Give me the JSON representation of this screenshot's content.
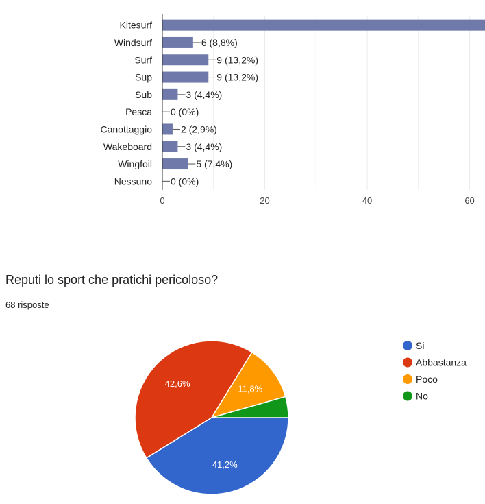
{
  "chart_data": [
    {
      "type": "bar",
      "orientation": "horizontal",
      "categories": [
        "Kitesurf",
        "Windsurf",
        "Surf",
        "Sup",
        "Sub",
        "Pesca",
        "Canottaggio",
        "Wakeboard",
        "Wingfoil",
        "Nessuno"
      ],
      "values": [
        64,
        6,
        9,
        9,
        3,
        0,
        2,
        3,
        5,
        0
      ],
      "data_labels": [
        "",
        "6 (8,8%)",
        "9 (13,2%)",
        "9 (13,2%)",
        "3 (4,4%)",
        "0 (0%)",
        "2 (2,9%)",
        "3 (4,4%)",
        "5 (7,4%)",
        "0 (0%)"
      ],
      "xticks": [
        0,
        20,
        40,
        60
      ],
      "xlim": [
        0,
        63
      ],
      "grid": true,
      "color": "#6f7aaa"
    },
    {
      "type": "pie",
      "title": "Reputi lo sport che pratichi pericoloso?",
      "subtitle": "68 risposte",
      "labels": [
        "Si",
        "Abbastanza",
        "Poco",
        "No"
      ],
      "values": [
        41.2,
        42.6,
        11.8,
        4.4
      ],
      "slice_labels": [
        "41,2%",
        "42,6%",
        "11,8%",
        ""
      ],
      "colors": [
        "#3366cc",
        "#dc3912",
        "#ff9900",
        "#109618"
      ],
      "legend": "right"
    }
  ]
}
